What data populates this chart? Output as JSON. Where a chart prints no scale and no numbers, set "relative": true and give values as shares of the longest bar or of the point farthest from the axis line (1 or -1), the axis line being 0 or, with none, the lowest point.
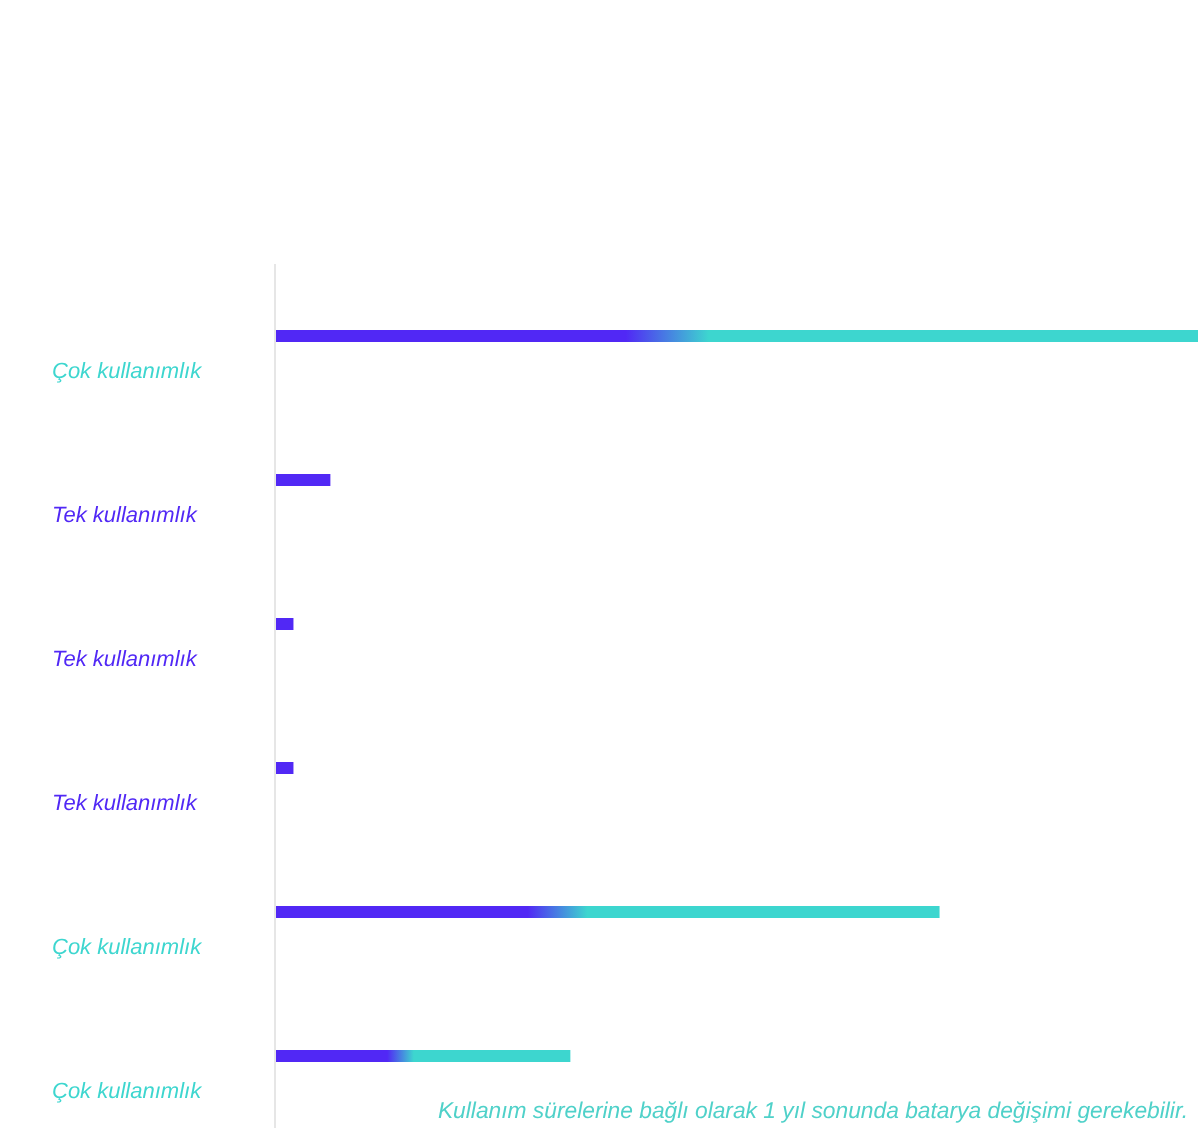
{
  "chart_data": {
    "type": "bar",
    "orientation": "horizontal",
    "relative": true,
    "categories": [
      "Çok kullanımlık",
      "Tek kullanımlık",
      "Tek kullanımlık",
      "Tek kullanımlık",
      "Çok kullanımlık",
      "Çok kullanımlık"
    ],
    "values": [
      1,
      0.06,
      0.02,
      0.02,
      0.72,
      0.32
    ],
    "colors": [
      "#3dd6cf",
      "#5128f5",
      "#5128f5",
      "#5128f5",
      "#3dd6cf",
      "#3dd6cf"
    ],
    "annotations": [
      "Kullanım sürelerine bağlı olarak 1 yıl sonunda batarya değişimi gerekebilir."
    ]
  }
}
